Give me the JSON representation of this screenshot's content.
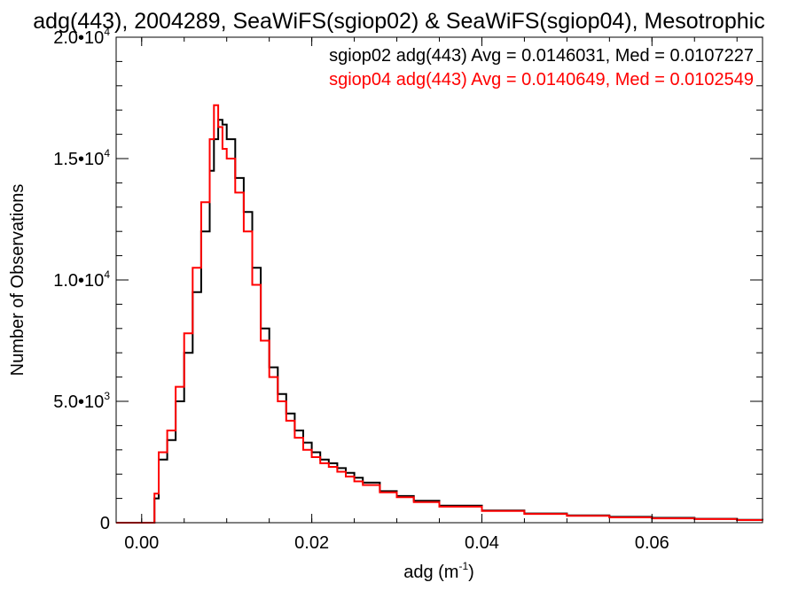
{
  "chart_data": {
    "type": "line",
    "title": "adg(443), 2004289, SeaWiFS(sgiop02) & SeaWiFS(sgiop04), Mesotrophic",
    "xlabel": "adg (m",
    "xlabel_sup": "-1",
    "xlabel_close": ")",
    "ylabel": "Number of Observations",
    "xlim": [
      -0.003,
      0.073
    ],
    "ylim": [
      0,
      20000
    ],
    "x_ticks": [
      {
        "value": 0.0,
        "label": "0.00"
      },
      {
        "value": 0.02,
        "label": "0.02"
      },
      {
        "value": 0.04,
        "label": "0.04"
      },
      {
        "value": 0.06,
        "label": "0.06"
      }
    ],
    "y_ticks": [
      {
        "value": 0,
        "label": "0",
        "sup": ""
      },
      {
        "value": 5000,
        "label": "5.0•10",
        "sup": "3"
      },
      {
        "value": 10000,
        "label": "1.0•10",
        "sup": "4"
      },
      {
        "value": 15000,
        "label": "1.5•10",
        "sup": "4"
      },
      {
        "value": 20000,
        "label": "2.0•10",
        "sup": "4"
      }
    ],
    "legend_position": "top-right",
    "series": [
      {
        "name": "sgiop02 adg(443) Avg = 0.0146031, Med = 0.0107227",
        "color": "#000000",
        "x": [
          -0.003,
          0.0,
          0.001,
          0.0015,
          0.002,
          0.003,
          0.004,
          0.005,
          0.006,
          0.007,
          0.008,
          0.0085,
          0.009,
          0.0095,
          0.01,
          0.011,
          0.012,
          0.013,
          0.014,
          0.015,
          0.016,
          0.017,
          0.018,
          0.019,
          0.02,
          0.021,
          0.022,
          0.023,
          0.024,
          0.025,
          0.026,
          0.028,
          0.03,
          0.032,
          0.035,
          0.04,
          0.045,
          0.05,
          0.055,
          0.06,
          0.065,
          0.07,
          0.073
        ],
        "y": [
          0,
          0,
          0,
          1000,
          2600,
          3400,
          5000,
          7000,
          9500,
          12000,
          14500,
          15800,
          16600,
          16400,
          15800,
          14200,
          12800,
          10500,
          8000,
          6400,
          5300,
          4500,
          3800,
          3300,
          2900,
          2600,
          2450,
          2250,
          2050,
          1850,
          1650,
          1300,
          1100,
          900,
          700,
          500,
          380,
          300,
          240,
          200,
          160,
          120,
          100
        ]
      },
      {
        "name": "sgiop04 adg(443) Avg = 0.0140649, Med = 0.0102549",
        "color": "#ff0000",
        "x": [
          -0.003,
          0.0,
          0.001,
          0.0015,
          0.002,
          0.003,
          0.004,
          0.005,
          0.006,
          0.007,
          0.008,
          0.0085,
          0.009,
          0.0095,
          0.01,
          0.011,
          0.012,
          0.013,
          0.014,
          0.015,
          0.016,
          0.017,
          0.018,
          0.019,
          0.02,
          0.021,
          0.022,
          0.023,
          0.024,
          0.025,
          0.026,
          0.028,
          0.03,
          0.032,
          0.035,
          0.04,
          0.045,
          0.05,
          0.055,
          0.06,
          0.065,
          0.07,
          0.073
        ],
        "y": [
          0,
          0,
          0,
          1200,
          2900,
          3800,
          5600,
          7800,
          10500,
          13200,
          15800,
          17200,
          16300,
          15400,
          15000,
          13600,
          12000,
          9800,
          7500,
          6000,
          5000,
          4200,
          3500,
          3000,
          2700,
          2450,
          2300,
          2100,
          1900,
          1700,
          1550,
          1250,
          1050,
          850,
          660,
          480,
          360,
          280,
          220,
          180,
          150,
          110,
          90
        ]
      }
    ]
  }
}
